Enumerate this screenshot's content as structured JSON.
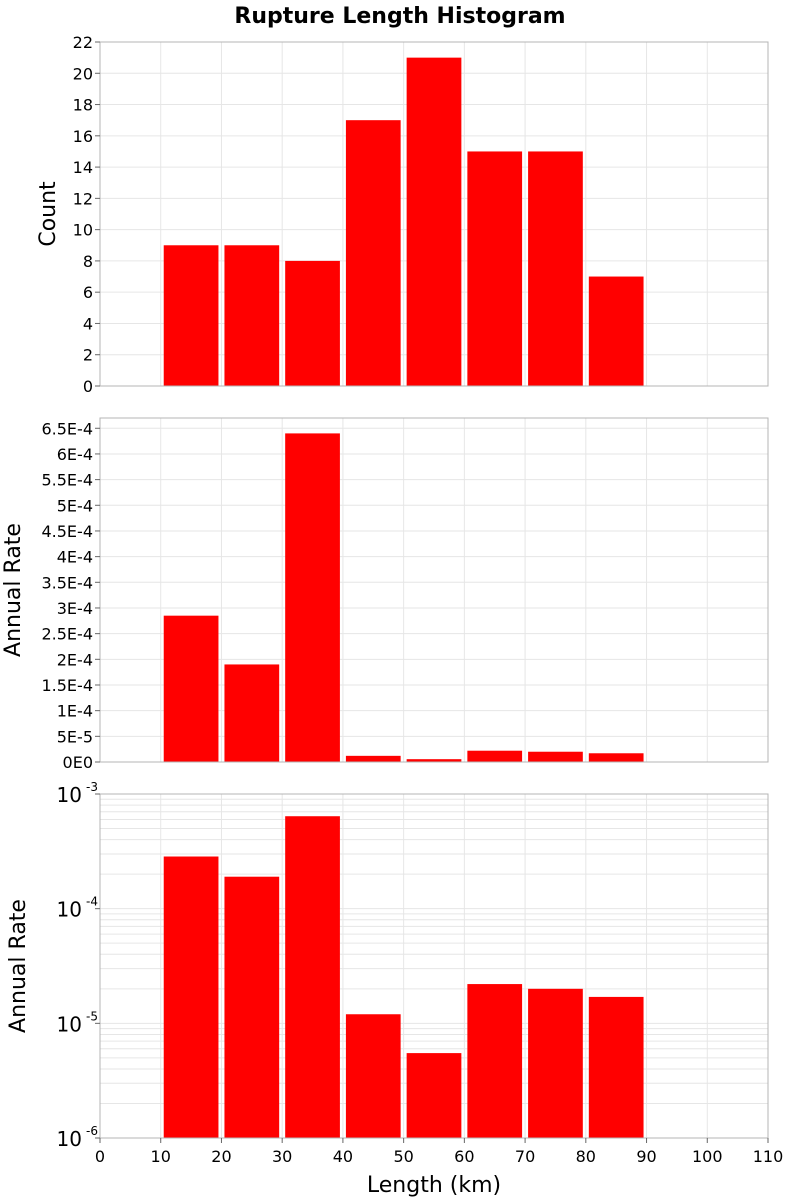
{
  "title": "Rupture Length Histogram",
  "colors": {
    "bar": "#ff0000",
    "grid": "#e6e6e6",
    "frame": "#b4b4b4"
  },
  "chart_data": [
    {
      "type": "bar",
      "panel": "top",
      "ylabel": "Count",
      "xlim": [
        0,
        110
      ],
      "ylim": [
        0,
        22
      ],
      "yticks": [
        0,
        2,
        4,
        6,
        8,
        10,
        12,
        14,
        16,
        18,
        20,
        22
      ],
      "ytick_labels": [
        "0",
        "2",
        "4",
        "6",
        "8",
        "10",
        "12",
        "14",
        "16",
        "18",
        "20",
        "22"
      ],
      "bin_width": 10,
      "bin_centers": [
        15,
        25,
        35,
        45,
        55,
        65,
        75,
        85
      ],
      "values": [
        9,
        9,
        8,
        17,
        21,
        15,
        15,
        7
      ]
    },
    {
      "type": "bar",
      "panel": "middle",
      "ylabel": "Annual Rate",
      "xlim": [
        0,
        110
      ],
      "ylim": [
        0,
        0.00067
      ],
      "yticks": [
        0,
        5e-05,
        0.0001,
        0.00015,
        0.0002,
        0.00025,
        0.0003,
        0.00035,
        0.0004,
        0.00045,
        0.0005,
        0.00055,
        0.0006,
        0.00065
      ],
      "ytick_labels": [
        "0E0",
        "5E-5",
        "1E-4",
        "1.5E-4",
        "2E-4",
        "2.5E-4",
        "3E-4",
        "3.5E-4",
        "4E-4",
        "4.5E-4",
        "5E-4",
        "5.5E-4",
        "6E-4",
        "6.5E-4"
      ],
      "bin_width": 10,
      "bin_centers": [
        15,
        25,
        35,
        45,
        55,
        65,
        75,
        85
      ],
      "values": [
        0.000285,
        0.00019,
        0.00064,
        1.2e-05,
        5.5e-06,
        2.2e-05,
        2e-05,
        1.7e-05
      ]
    },
    {
      "type": "bar",
      "panel": "bottom",
      "yscale": "log",
      "ylabel": "Annual Rate",
      "xlabel": "Length (km)",
      "xlim": [
        0,
        110
      ],
      "ylim": [
        1e-06,
        0.001
      ],
      "yticks": [
        1e-06,
        1e-05,
        0.0001,
        0.001
      ],
      "ytick_labels": [
        {
          "base": "10",
          "exp": "-6"
        },
        {
          "base": "10",
          "exp": "-5"
        },
        {
          "base": "10",
          "exp": "-4"
        },
        {
          "base": "10",
          "exp": "-3"
        }
      ],
      "xticks": [
        0,
        10,
        20,
        30,
        40,
        50,
        60,
        70,
        80,
        90,
        100,
        110
      ],
      "xtick_labels": [
        "0",
        "10",
        "20",
        "30",
        "40",
        "50",
        "60",
        "70",
        "80",
        "90",
        "100",
        "110"
      ],
      "bin_width": 10,
      "bin_centers": [
        15,
        25,
        35,
        45,
        55,
        65,
        75,
        85
      ],
      "values": [
        0.000285,
        0.00019,
        0.00064,
        1.2e-05,
        5.5e-06,
        2.2e-05,
        2e-05,
        1.7e-05
      ]
    }
  ]
}
